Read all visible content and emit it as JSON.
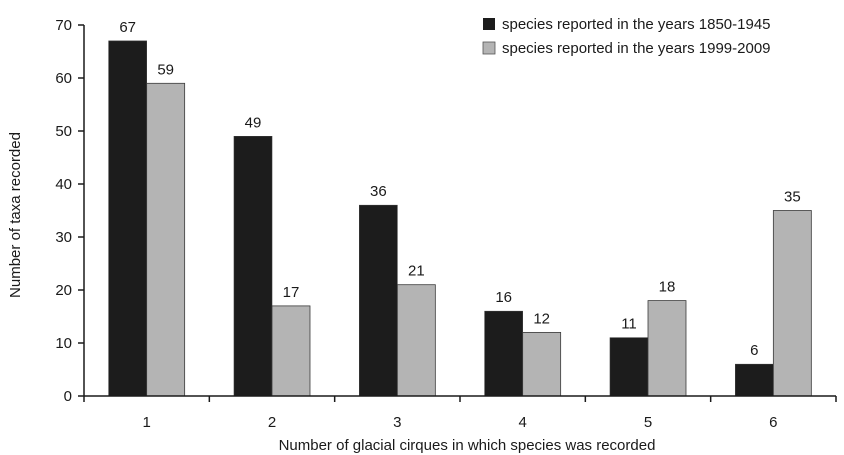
{
  "chart_data": {
    "type": "bar",
    "categories": [
      "1",
      "2",
      "3",
      "4",
      "5",
      "6"
    ],
    "series": [
      {
        "name": "species reported in the years 1850-1945",
        "color": "#1c1c1c",
        "values": [
          67,
          49,
          36,
          16,
          11,
          6
        ]
      },
      {
        "name": "species reported in the years 1999-2009",
        "color": "#b4b4b4",
        "values": [
          59,
          17,
          21,
          12,
          18,
          35
        ]
      }
    ],
    "xlabel": "Number of glacial cirques in which species was recorded",
    "ylabel": "Number of taxa  recorded",
    "ylim": [
      0,
      70
    ],
    "yticks": [
      0,
      10,
      20,
      30,
      40,
      50,
      60,
      70
    ],
    "grid": false,
    "legend_position": "top-right"
  }
}
